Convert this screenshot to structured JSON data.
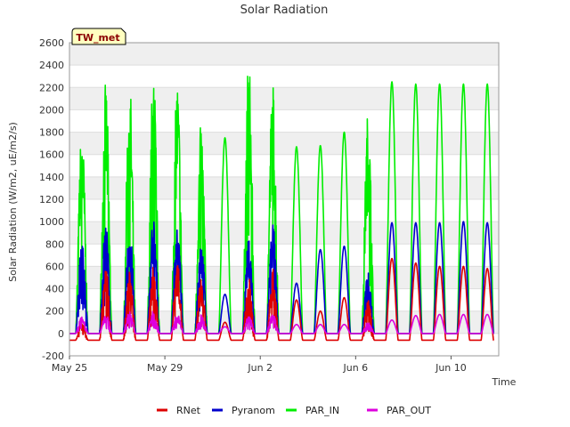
{
  "chart_data": {
    "type": "line",
    "title": "Solar Radiation",
    "badge": "TW_met",
    "xlabel": "Time",
    "ylabel": "Solar Radiation (W/m2, uE/m2/s)",
    "ylim": [
      -200,
      2600
    ],
    "yticks": [
      -200,
      0,
      200,
      400,
      600,
      800,
      1000,
      1200,
      1400,
      1600,
      1800,
      2000,
      2200,
      2400,
      2600
    ],
    "xlim": [
      "2020-05-25",
      "2020-06-12"
    ],
    "xticks": [
      {
        "value": "2020-05-25",
        "label": "May 25"
      },
      {
        "value": "2020-05-29",
        "label": "May 29"
      },
      {
        "value": "2020-06-02",
        "label": "Jun 2"
      },
      {
        "value": "2020-06-06",
        "label": "Jun 6"
      },
      {
        "value": "2020-06-10",
        "label": "Jun 10"
      }
    ],
    "grid": "horizontal",
    "legend_position": "bottom",
    "days": [
      "2020-05-25",
      "2020-05-26",
      "2020-05-27",
      "2020-05-28",
      "2020-05-29",
      "2020-05-30",
      "2020-05-31",
      "2020-06-01",
      "2020-06-02",
      "2020-06-03",
      "2020-06-04",
      "2020-06-05",
      "2020-06-06",
      "2020-06-07",
      "2020-06-08",
      "2020-06-09",
      "2020-06-10",
      "2020-06-11"
    ],
    "series": [
      {
        "name": "RNet",
        "color": "#dd0000",
        "night": -60,
        "daily_max": [
          100,
          600,
          590,
          600,
          650,
          490,
          100,
          500,
          580,
          300,
          200,
          320,
          300,
          670,
          630,
          600,
          600,
          580
        ]
      },
      {
        "name": "Pyranom",
        "color": "#0000cc",
        "night": 0,
        "daily_max": [
          850,
          990,
          1000,
          1060,
          1020,
          870,
          350,
          850,
          1020,
          450,
          750,
          780,
          550,
          990,
          990,
          990,
          1000,
          990
        ]
      },
      {
        "name": "PAR_IN",
        "color": "#00ee00",
        "night": 0,
        "daily_max": [
          1870,
          2250,
          2290,
          2400,
          2290,
          1910,
          1750,
          2480,
          2270,
          1670,
          1680,
          1800,
          2000,
          2250,
          2230,
          2230,
          2230,
          2230
        ]
      },
      {
        "name": "PAR_OUT",
        "color": "#dd00dd",
        "night": 0,
        "daily_max": [
          150,
          180,
          200,
          200,
          180,
          170,
          60,
          160,
          180,
          80,
          80,
          80,
          100,
          120,
          160,
          170,
          170,
          170
        ]
      }
    ]
  }
}
